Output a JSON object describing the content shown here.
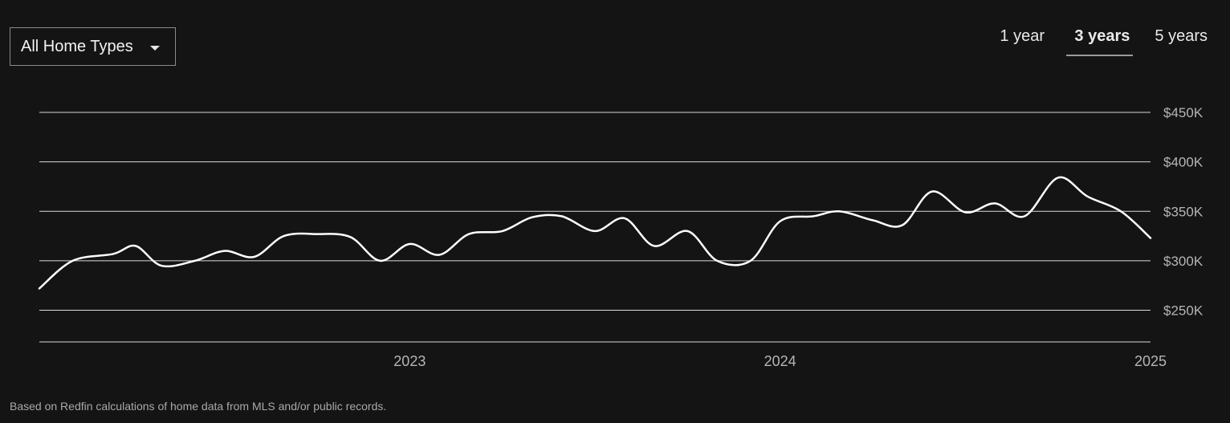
{
  "filter": {
    "selected": "All Home Types",
    "icon": "caret-down-icon"
  },
  "range_tabs": [
    {
      "label": "1 year",
      "active": false
    },
    {
      "label": "3 years",
      "active": true
    },
    {
      "label": "5 years",
      "active": false
    }
  ],
  "footnote": "Based on Redfin calculations of home data from MLS and/or public records.",
  "colors": {
    "background": "#141414",
    "line": "#ffffff",
    "grid": "#d9d9d9",
    "axis_text": "#b5b5b5"
  },
  "chart_data": {
    "type": "line",
    "title": "",
    "xlabel": "",
    "ylabel": "",
    "x_ticks": [
      {
        "label": "2023",
        "x": 2023.0
      },
      {
        "label": "2024",
        "x": 2024.0
      },
      {
        "label": "2025",
        "x": 2025.0
      }
    ],
    "y_ticks": [
      {
        "label": "$250K",
        "y": 250000
      },
      {
        "label": "$300K",
        "y": 300000
      },
      {
        "label": "$350K",
        "y": 350000
      },
      {
        "label": "$400K",
        "y": 400000
      },
      {
        "label": "$450K",
        "y": 450000
      }
    ],
    "xlim": [
      2022.0,
      2025.0
    ],
    "ylim": [
      218000,
      450000
    ],
    "grid": true,
    "legend": "none",
    "series": [
      {
        "points": [
          [
            2022.0,
            272000
          ],
          [
            2022.09,
            300000
          ],
          [
            2022.2,
            307000
          ],
          [
            2022.26,
            315000
          ],
          [
            2022.33,
            295000
          ],
          [
            2022.42,
            300000
          ],
          [
            2022.5,
            310000
          ],
          [
            2022.58,
            304000
          ],
          [
            2022.66,
            325000
          ],
          [
            2022.75,
            327000
          ],
          [
            2022.84,
            324000
          ],
          [
            2022.92,
            300000
          ],
          [
            2023.0,
            317000
          ],
          [
            2023.08,
            306000
          ],
          [
            2023.16,
            327000
          ],
          [
            2023.25,
            330000
          ],
          [
            2023.33,
            344000
          ],
          [
            2023.41,
            345000
          ],
          [
            2023.5,
            330000
          ],
          [
            2023.58,
            343000
          ],
          [
            2023.66,
            315000
          ],
          [
            2023.75,
            330000
          ],
          [
            2023.83,
            300000
          ],
          [
            2023.92,
            300000
          ],
          [
            2024.0,
            340000
          ],
          [
            2024.09,
            345000
          ],
          [
            2024.16,
            350000
          ],
          [
            2024.25,
            341000
          ],
          [
            2024.33,
            336000
          ],
          [
            2024.41,
            370000
          ],
          [
            2024.5,
            349000
          ],
          [
            2024.58,
            358000
          ],
          [
            2024.66,
            345000
          ],
          [
            2024.75,
            384000
          ],
          [
            2024.83,
            365000
          ],
          [
            2024.92,
            350000
          ],
          [
            2025.0,
            323000
          ]
        ]
      }
    ]
  }
}
